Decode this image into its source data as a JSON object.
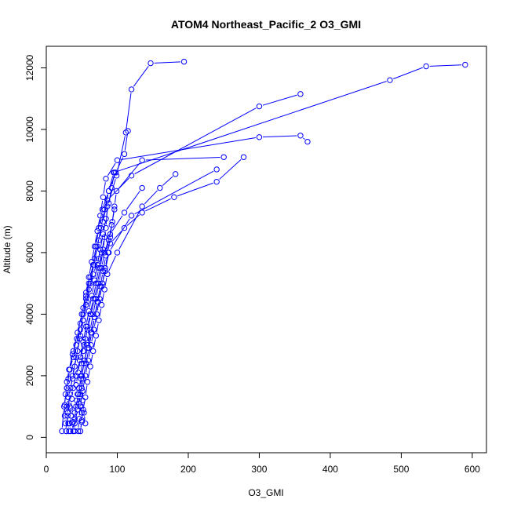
{
  "chart_data": {
    "type": "line",
    "title": "ATOM4 Northeast_Pacific_2 O3_GMI",
    "xlabel": "O3_GMI",
    "ylabel": "Altitude (m)",
    "xlim": [
      0,
      620
    ],
    "ylim": [
      -500,
      12700
    ],
    "xticks": [
      0,
      100,
      200,
      300,
      400,
      500,
      600
    ],
    "yticks": [
      0,
      2000,
      4000,
      6000,
      8000,
      10000,
      12000
    ],
    "grid": false,
    "color": "#0000ff",
    "marker": "open-circle",
    "series": [
      {
        "x": [
          34,
          33,
          35,
          33,
          31,
          29,
          31,
          33,
          38,
          42,
          48,
          52,
          56,
          60,
          66,
          70,
          74,
          79,
          88,
          98,
          110,
          115
        ],
        "y": [
          200,
          450,
          700,
          1000,
          1300,
          1600,
          1900,
          2200,
          2600,
          3000,
          3500,
          4000,
          4500,
          5000,
          5600,
          6200,
          6800,
          7400,
          8000,
          8600,
          9200,
          9950
        ]
      },
      {
        "x": [
          38,
          36,
          35,
          34,
          36,
          38,
          42,
          47,
          53,
          58,
          63,
          68,
          72,
          76,
          80,
          84,
          86,
          99,
          112,
          120,
          147,
          194
        ],
        "y": [
          200,
          480,
          700,
          950,
          1250,
          1600,
          2000,
          2500,
          3000,
          3500,
          4000,
          4500,
          5000,
          5500,
          6100,
          6800,
          7500,
          8500,
          9900,
          11300,
          12150,
          12200
        ]
      },
      {
        "x": [
          28,
          27,
          26,
          26,
          27,
          29,
          32,
          37,
          43,
          48,
          52,
          56,
          60,
          64,
          68,
          72,
          76,
          80,
          84,
          100,
          300,
          358,
          368
        ],
        "y": [
          200,
          450,
          700,
          1050,
          1400,
          1800,
          2200,
          2700,
          3200,
          3700,
          4200,
          4700,
          5200,
          5700,
          6200,
          6700,
          7200,
          7800,
          8400,
          9000,
          9750,
          9800,
          9600
        ]
      },
      {
        "x": [
          48,
          50,
          50,
          46,
          44,
          42,
          45,
          48,
          52,
          56,
          60,
          64,
          68,
          72,
          76,
          80,
          84,
          88,
          92,
          96
        ],
        "y": [
          200,
          500,
          800,
          1100,
          1400,
          1700,
          2100,
          2600,
          3100,
          3600,
          4100,
          4600,
          5100,
          5600,
          6100,
          6600,
          7100,
          7600,
          8100,
          8600
        ]
      },
      {
        "x": [
          32,
          31,
          30,
          29,
          31,
          34,
          37,
          40,
          44,
          48,
          52,
          56,
          60,
          66,
          74,
          90,
          110,
          135,
          180,
          240,
          278
        ],
        "y": [
          200,
          450,
          700,
          1000,
          1300,
          1600,
          1900,
          2300,
          2800,
          3300,
          3800,
          4300,
          4800,
          5300,
          5800,
          6300,
          6800,
          7300,
          7800,
          8300,
          9100
        ]
      },
      {
        "x": [
          38,
          38,
          40,
          43,
          46,
          50,
          54,
          58,
          62,
          66,
          70,
          74,
          78,
          82,
          90,
          110,
          135
        ],
        "y": [
          200,
          500,
          800,
          1200,
          1600,
          2000,
          2500,
          3000,
          3500,
          4000,
          4500,
          5000,
          5500,
          6000,
          6600,
          7300,
          8100
        ]
      },
      {
        "x": [
          22,
          25,
          29,
          33,
          38,
          44,
          50,
          56,
          62,
          68,
          74,
          80,
          86,
          120,
          300,
          358
        ],
        "y": [
          200,
          1000,
          1600,
          2200,
          2800,
          3400,
          4000,
          4600,
          5200,
          5800,
          6400,
          7000,
          7700,
          8500,
          10750,
          11150
        ]
      },
      {
        "x": [
          40,
          40,
          42,
          45,
          49,
          53,
          58,
          63,
          68,
          73,
          78,
          83,
          88,
          120,
          240
        ],
        "y": [
          200,
          600,
          1000,
          1400,
          1900,
          2400,
          2900,
          3400,
          3900,
          4400,
          4900,
          5400,
          6000,
          7200,
          8700
        ]
      },
      {
        "x": [
          28,
          30,
          33,
          37,
          42,
          47,
          52,
          57,
          62,
          67,
          72,
          77,
          82,
          88,
          95,
          484,
          535,
          590
        ],
        "y": [
          200,
          800,
          1400,
          2000,
          2600,
          3200,
          3800,
          4400,
          5000,
          5600,
          6200,
          6800,
          7400,
          8000,
          8600,
          11600,
          12050,
          12100
        ]
      },
      {
        "x": [
          45,
          46,
          48,
          51,
          55,
          59,
          63,
          67,
          71,
          75,
          79,
          83,
          87,
          90,
          93,
          96,
          99,
          135,
          250
        ],
        "y": [
          200,
          600,
          1000,
          1500,
          2000,
          2500,
          3000,
          3500,
          4000,
          4500,
          5000,
          5500,
          6000,
          6500,
          7000,
          7500,
          8000,
          9000,
          9100
        ]
      },
      {
        "x": [
          48,
          50,
          52,
          55,
          58,
          62,
          66,
          70,
          74,
          78,
          82,
          86,
          100,
          135,
          160,
          182
        ],
        "y": [
          200,
          550,
          900,
          1300,
          1800,
          2300,
          2800,
          3300,
          3800,
          4300,
          4800,
          5300,
          6000,
          7500,
          8100,
          8550
        ]
      },
      {
        "x": [
          55,
          53,
          51,
          50,
          49,
          50,
          52,
          55,
          58,
          62,
          66,
          70,
          74,
          78,
          82
        ],
        "y": [
          450,
          800,
          1200,
          1600,
          2000,
          2400,
          2800,
          3200,
          3600,
          4000,
          4500,
          5000,
          5500,
          6000,
          6500
        ]
      },
      {
        "x": [
          40,
          44,
          48,
          52,
          56,
          60,
          64,
          68,
          72,
          76,
          80,
          84,
          88,
          92,
          96
        ],
        "y": [
          450,
          900,
          1400,
          1900,
          2400,
          2900,
          3400,
          3900,
          4400,
          4900,
          5400,
          5900,
          6400,
          6900,
          7400
        ]
      }
    ]
  }
}
